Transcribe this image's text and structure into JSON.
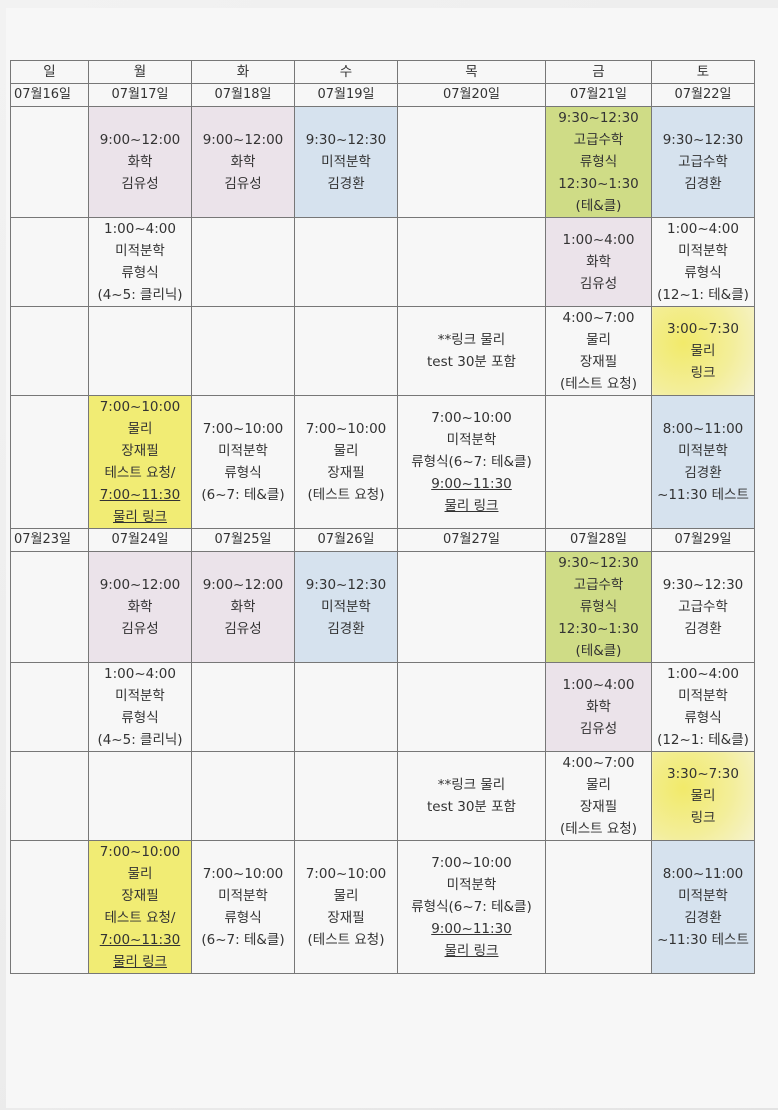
{
  "days": [
    "일",
    "월",
    "화",
    "수",
    "목",
    "금",
    "토"
  ],
  "weeks": [
    {
      "dates": [
        "07월16일",
        "07월17일",
        "07월18일",
        "07월19일",
        "07월20일",
        "07월21일",
        "07월22일"
      ],
      "rows": [
        [
          [],
          [
            "9:00~12:00",
            "화학",
            "김유성"
          ],
          [
            "9:00~12:00",
            "화학",
            "김유성"
          ],
          [
            "9:30~12:30",
            "미적분학",
            "김경환"
          ],
          [],
          [
            "9:30~12:30",
            "고급수학",
            "류형식",
            "12:30~1:30",
            "(테&클)"
          ],
          [
            "9:30~12:30",
            "고급수학",
            "김경환"
          ]
        ],
        [
          [],
          [
            "1:00~4:00",
            "미적분학",
            "류형식",
            "(4~5: 클리닉)"
          ],
          [],
          [],
          [],
          [
            "1:00~4:00",
            "화학",
            "김유성"
          ],
          [
            "1:00~4:00",
            "미적분학",
            "류형식",
            "(12~1: 테&클)"
          ]
        ],
        [
          [],
          [],
          [],
          [],
          [
            "**링크 물리",
            "test 30분 포함"
          ],
          [
            "4:00~7:00",
            "물리",
            "장재필",
            "(테스트 요청)"
          ],
          [
            "3:00~7:30",
            "물리",
            "링크"
          ]
        ],
        [
          [],
          [
            "7:00~10:00",
            "물리",
            "장재필",
            "테스트 요청/",
            "7:00~11:30",
            "물리 링크"
          ],
          [
            "7:00~10:00",
            "미적분학",
            "류형식",
            "(6~7: 테&클)"
          ],
          [
            "7:00~10:00",
            "물리",
            "장재필",
            "(테스트 요청)"
          ],
          [
            "7:00~10:00",
            "미적분학",
            "류형식(6~7: 테&클)",
            "9:00~11:30",
            "물리 링크"
          ],
          [],
          [
            "8:00~11:00",
            "미적분학",
            "김경환",
            "~11:30 테스트"
          ]
        ]
      ]
    },
    {
      "dates": [
        "07월23일",
        "07월24일",
        "07월25일",
        "07월26일",
        "07월27일",
        "07월28일",
        "07월29일"
      ],
      "rows": [
        [
          [],
          [
            "9:00~12:00",
            "화학",
            "김유성"
          ],
          [
            "9:00~12:00",
            "화학",
            "김유성"
          ],
          [
            "9:30~12:30",
            "미적분학",
            "김경환"
          ],
          [],
          [
            "9:30~12:30",
            "고급수학",
            "류형식",
            "12:30~1:30",
            "(테&클)"
          ],
          [
            "9:30~12:30",
            "고급수학",
            "김경환"
          ]
        ],
        [
          [],
          [
            "1:00~4:00",
            "미적분학",
            "류형식",
            "(4~5: 클리닉)"
          ],
          [],
          [],
          [],
          [
            "1:00~4:00",
            "화학",
            "김유성"
          ],
          [
            "1:00~4:00",
            "미적분학",
            "류형식",
            "(12~1: 테&클)"
          ]
        ],
        [
          [],
          [],
          [],
          [],
          [
            "**링크 물리",
            "test 30분 포함"
          ],
          [
            "4:00~7:00",
            "물리",
            "장재필",
            "(테스트 요청)"
          ],
          [
            "3:30~7:30",
            "물리",
            "링크"
          ]
        ],
        [
          [],
          [
            "7:00~10:00",
            "물리",
            "장재필",
            "테스트 요청/",
            "7:00~11:30",
            "물리 링크"
          ],
          [
            "7:00~10:00",
            "미적분학",
            "류형식",
            "(6~7: 테&클)"
          ],
          [
            "7:00~10:00",
            "물리",
            "장재필",
            "(테스트 요청)"
          ],
          [
            "7:00~10:00",
            "미적분학",
            "류형식(6~7: 테&클)",
            "9:00~11:30",
            "물리 링크"
          ],
          [],
          [
            "8:00~11:00",
            "미적분학",
            "김경환",
            "~11:30 테스트"
          ]
        ]
      ]
    }
  ],
  "colors": {
    "chemistry": "#ebe3ea",
    "calculus_kim": "#d6e2ee",
    "advanced_math": "#cfdc86",
    "physics": "#f1ec74"
  }
}
